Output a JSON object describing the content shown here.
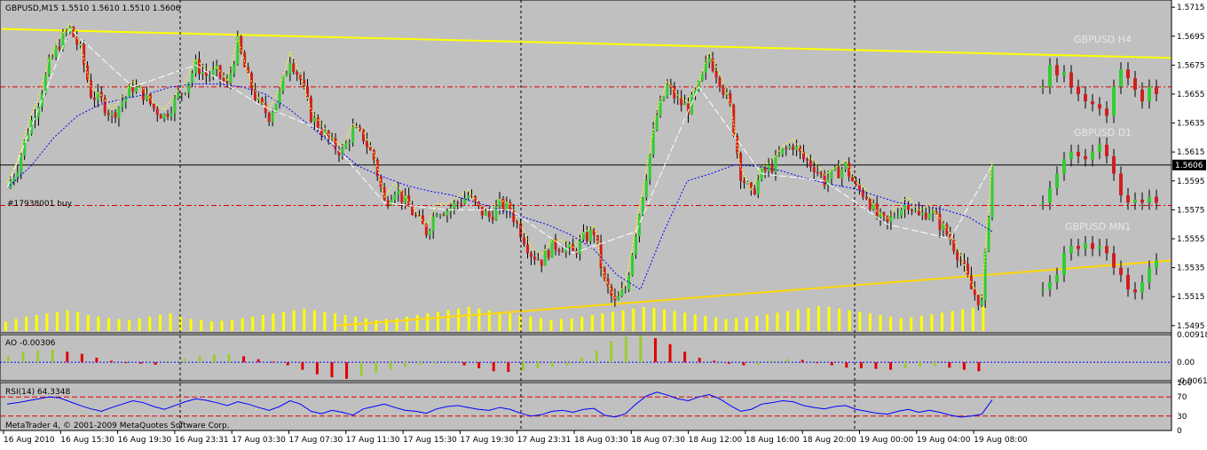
{
  "colors": {
    "plot_bg": "#c0c0c0",
    "page_bg": "#ffffff",
    "bull": "#32cd32",
    "bear": "#d21e1e",
    "volume": "#ffff00",
    "trendline": "#ffd700",
    "resistance": "#ffff00",
    "dotted_ma": "#0000ff",
    "fast_ma": "#ffff00",
    "zigzag": "#ffffff",
    "level_red": "#e00000",
    "ao_up": "#9acd32",
    "ao_down": "#e00000",
    "rsi_line": "#0000ff",
    "rsi_levels": "#e00000",
    "grid": "#000000"
  },
  "header": {
    "symbol_info": "GBPUSD,M15  1.5510 1.5610 1.5510 1.5606",
    "order_label": "#17938001 buy",
    "current_price": "1.5606",
    "copyright": "MetaTrader 4, © 2001-2009 MetaQuotes Software Corp."
  },
  "chart_data": [
    {
      "type": "candlestick",
      "title": "GBPUSD,M15",
      "ylim": [
        1.549,
        1.572
      ],
      "y_ticks": [
        "1.5715",
        "1.5695",
        "1.5675",
        "1.5655",
        "1.5635",
        "1.5615",
        "1.5595",
        "1.5575",
        "1.5555",
        "1.5535",
        "1.5515",
        "1.5495"
      ],
      "x_ticks": [
        "16 Aug 2010",
        "16 Aug 15:30",
        "16 Aug 19:30",
        "16 Aug 23:31",
        "17 Aug 03:30",
        "17 Aug 07:30",
        "17 Aug 11:30",
        "17 Aug 15:30",
        "17 Aug 19:30",
        "17 Aug 23:31",
        "18 Aug 03:30",
        "18 Aug 07:30",
        "18 Aug 12:00",
        "18 Aug 16:00",
        "18 Aug 20:00",
        "19 Aug 00:00",
        "19 Aug 04:00",
        "19 Aug 08:00"
      ],
      "close_path": [
        1.559,
        1.5605,
        1.563,
        1.565,
        1.5675,
        1.569,
        1.57,
        1.5685,
        1.5655,
        1.565,
        1.564,
        1.565,
        1.566,
        1.5655,
        1.5645,
        1.564,
        1.565,
        1.566,
        1.5675,
        1.5668,
        1.567,
        1.566,
        1.569,
        1.5665,
        1.5648,
        1.564,
        1.5655,
        1.568,
        1.5665,
        1.564,
        1.563,
        1.562,
        1.5615,
        1.563,
        1.5625,
        1.561,
        1.558,
        1.559,
        1.558,
        1.557,
        1.556,
        1.5575,
        1.5575,
        1.558,
        1.5585,
        1.5575,
        1.557,
        1.5578,
        1.5575,
        1.556,
        1.5545,
        1.554,
        1.555,
        1.555,
        1.5545,
        1.5555,
        1.556,
        1.5525,
        1.551,
        1.552,
        1.556,
        1.56,
        1.564,
        1.566,
        1.565,
        1.5645,
        1.566,
        1.568,
        1.5665,
        1.5645,
        1.56,
        1.5585,
        1.56,
        1.5605,
        1.5615,
        1.562,
        1.561,
        1.5605,
        1.5595,
        1.56,
        1.5605,
        1.559,
        1.5585,
        1.557,
        1.5565,
        1.5575,
        1.558,
        1.557,
        1.5575,
        1.5565,
        1.5555,
        1.554,
        1.552,
        1.551,
        1.5606
      ],
      "moving_average_dotted": [
        1.559,
        1.5605,
        1.5625,
        1.564,
        1.5648,
        1.5652,
        1.5655,
        1.566,
        1.5662,
        1.5662,
        1.566,
        1.5655,
        1.5645,
        1.5632,
        1.5618,
        1.5605,
        1.5598,
        1.5592,
        1.5588,
        1.5585,
        1.558,
        1.5575,
        1.557,
        1.5565,
        1.5558,
        1.5548,
        1.553,
        1.552,
        1.556,
        1.5595,
        1.56,
        1.5606,
        1.5605,
        1.5602,
        1.5597,
        1.5593,
        1.559,
        1.5585,
        1.558,
        1.5578,
        1.5575,
        1.557,
        1.556
      ],
      "order_level": 1.5578,
      "red_level": 1.566,
      "volume_bars": [
        12,
        15,
        18,
        20,
        22,
        24,
        26,
        24,
        20,
        18,
        16,
        15,
        14,
        16,
        18,
        20,
        22,
        18,
        15,
        14,
        12,
        13,
        14,
        16,
        18,
        20,
        22,
        24,
        26,
        28,
        26,
        24,
        22,
        20,
        18,
        16,
        14,
        15,
        16,
        18,
        20,
        22,
        24,
        26,
        28,
        30,
        28,
        26,
        24,
        22,
        20,
        18,
        16,
        14,
        15,
        16,
        18,
        20,
        22,
        24,
        26,
        28,
        30,
        29,
        27,
        25,
        23,
        21,
        19,
        17,
        15,
        16,
        17,
        19,
        21,
        23,
        25,
        27,
        29,
        31,
        30,
        28,
        26,
        24,
        22,
        20,
        18,
        16,
        17,
        19,
        21,
        23,
        25,
        27,
        29,
        31
      ]
    },
    {
      "type": "bar",
      "title": "AO -0.00306",
      "ylim": [
        -0.00615,
        0.00918
      ],
      "y_ticks": [
        "0.00918",
        "0.00",
        "-0.00615"
      ],
      "values": [
        0.002,
        0.0035,
        0.004,
        0.0042,
        0.0035,
        0.0028,
        0.0015,
        0.0005,
        0.0,
        -0.0005,
        -0.0008,
        0.0003,
        0.0012,
        0.002,
        0.0025,
        0.0028,
        0.002,
        0.001,
        0.0002,
        -0.001,
        -0.0025,
        -0.004,
        -0.005,
        -0.0055,
        -0.0045,
        -0.0035,
        -0.0025,
        -0.0015,
        -0.0008,
        -0.0005,
        -0.0002,
        -0.001,
        -0.002,
        -0.003,
        -0.0032,
        -0.0028,
        -0.002,
        -0.0015,
        -0.001,
        0.0015,
        0.004,
        0.007,
        0.0085,
        0.0088,
        0.008,
        0.006,
        0.0035,
        0.0015,
        0.0005,
        -0.0005,
        -0.001,
        -0.0008,
        0.0005,
        0.001,
        0.0008,
        -0.0002,
        -0.001,
        -0.0018,
        -0.002,
        -0.0022,
        -0.0025,
        -0.002,
        -0.0015,
        -0.0012,
        -0.0018,
        -0.0025,
        -0.003
      ]
    },
    {
      "type": "line",
      "title": "RSI(14) 64.3348",
      "ylim": [
        0,
        100
      ],
      "y_ticks": [
        "100",
        "70",
        "30",
        "0"
      ],
      "levels": [
        70,
        30
      ],
      "values": [
        55,
        58,
        62,
        66,
        70,
        68,
        60,
        52,
        45,
        40,
        48,
        55,
        62,
        58,
        50,
        44,
        52,
        60,
        66,
        63,
        58,
        52,
        60,
        55,
        48,
        42,
        50,
        62,
        55,
        40,
        35,
        42,
        38,
        32,
        45,
        50,
        55,
        48,
        42,
        40,
        36,
        45,
        50,
        52,
        48,
        44,
        42,
        48,
        44,
        36,
        30,
        33,
        40,
        42,
        38,
        44,
        46,
        32,
        28,
        35,
        55,
        72,
        80,
        74,
        66,
        62,
        70,
        75,
        66,
        52,
        40,
        44,
        55,
        58,
        62,
        60,
        52,
        48,
        45,
        50,
        52,
        44,
        40,
        36,
        34,
        40,
        44,
        38,
        42,
        38,
        32,
        28,
        30,
        34,
        64
      ]
    }
  ],
  "annotations": {
    "h4_label": "GBPUSD H4",
    "d1_label": "GBPUSD D1",
    "mn1_label": "GBPUSD MN1"
  },
  "mini_charts": {
    "h4": [
      1.566,
      1.5675,
      1.5668,
      1.567,
      1.566,
      1.5655,
      1.565,
      1.5648,
      1.5645,
      1.564,
      1.566,
      1.5672,
      1.5666,
      1.5658,
      1.565,
      1.566,
      1.5655
    ],
    "d1": [
      1.558,
      1.559,
      1.56,
      1.561,
      1.5615,
      1.5612,
      1.561,
      1.5615,
      1.562,
      1.5612,
      1.56,
      1.5585,
      1.558,
      1.5582,
      1.558,
      1.5584,
      1.558
    ],
    "mn1": [
      1.552,
      1.5525,
      1.553,
      1.5545,
      1.555,
      1.5548,
      1.5552,
      1.5548,
      1.555,
      1.5545,
      1.5535,
      1.553,
      1.552,
      1.5518,
      1.5525,
      1.5535,
      1.554
    ]
  }
}
